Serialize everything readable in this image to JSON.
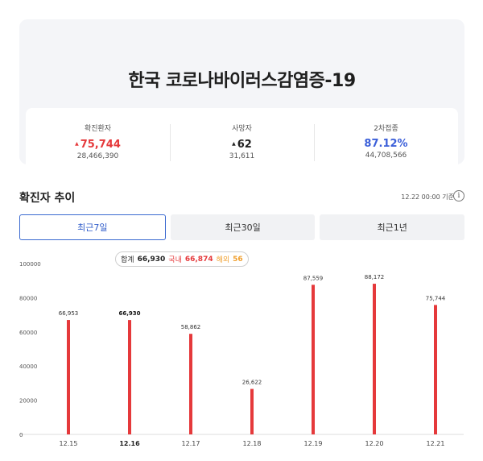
{
  "summary": {
    "title": "한국 코로나바이러스감염증-19",
    "stats": [
      {
        "label": "확진환자",
        "arrow": "▲",
        "value": "75,744",
        "total": "28,466,390"
      },
      {
        "label": "사망자",
        "arrow": "▲",
        "value": "62",
        "total": "31,611"
      },
      {
        "label": "2차접종",
        "value": "87.12%",
        "total": "44,708,566"
      }
    ],
    "colors": {
      "increase": "#e5393b",
      "vaccine": "#3b5fd9"
    }
  },
  "trend": {
    "title": "확진자 추이",
    "reference": "12.22 00:00 기준",
    "info_icon": "i"
  },
  "tabs": [
    {
      "label": "최근7일",
      "active": true
    },
    {
      "label": "최근30일",
      "active": false
    },
    {
      "label": "최근1년",
      "active": false
    }
  ],
  "tooltip": {
    "total_label": "합계",
    "total": "66,930",
    "domestic_label": "국내",
    "domestic": "66,874",
    "overseas_label": "해외",
    "overseas": "56"
  },
  "chart_data": {
    "type": "bar",
    "categories": [
      "12.15",
      "12.16",
      "12.17",
      "12.18",
      "12.19",
      "12.20",
      "12.21"
    ],
    "values": [
      66953,
      66930,
      58862,
      26622,
      87559,
      88172,
      75744
    ],
    "value_labels": [
      "66,953",
      "66,930",
      "58,862",
      "26,622",
      "87,559",
      "88,172",
      "75,744"
    ],
    "highlighted": "12.16",
    "y_ticks": [
      0,
      20000,
      40000,
      60000,
      80000,
      100000
    ],
    "ylim": [
      0,
      100000
    ],
    "bar_color": "#e5393b",
    "grid": false
  }
}
